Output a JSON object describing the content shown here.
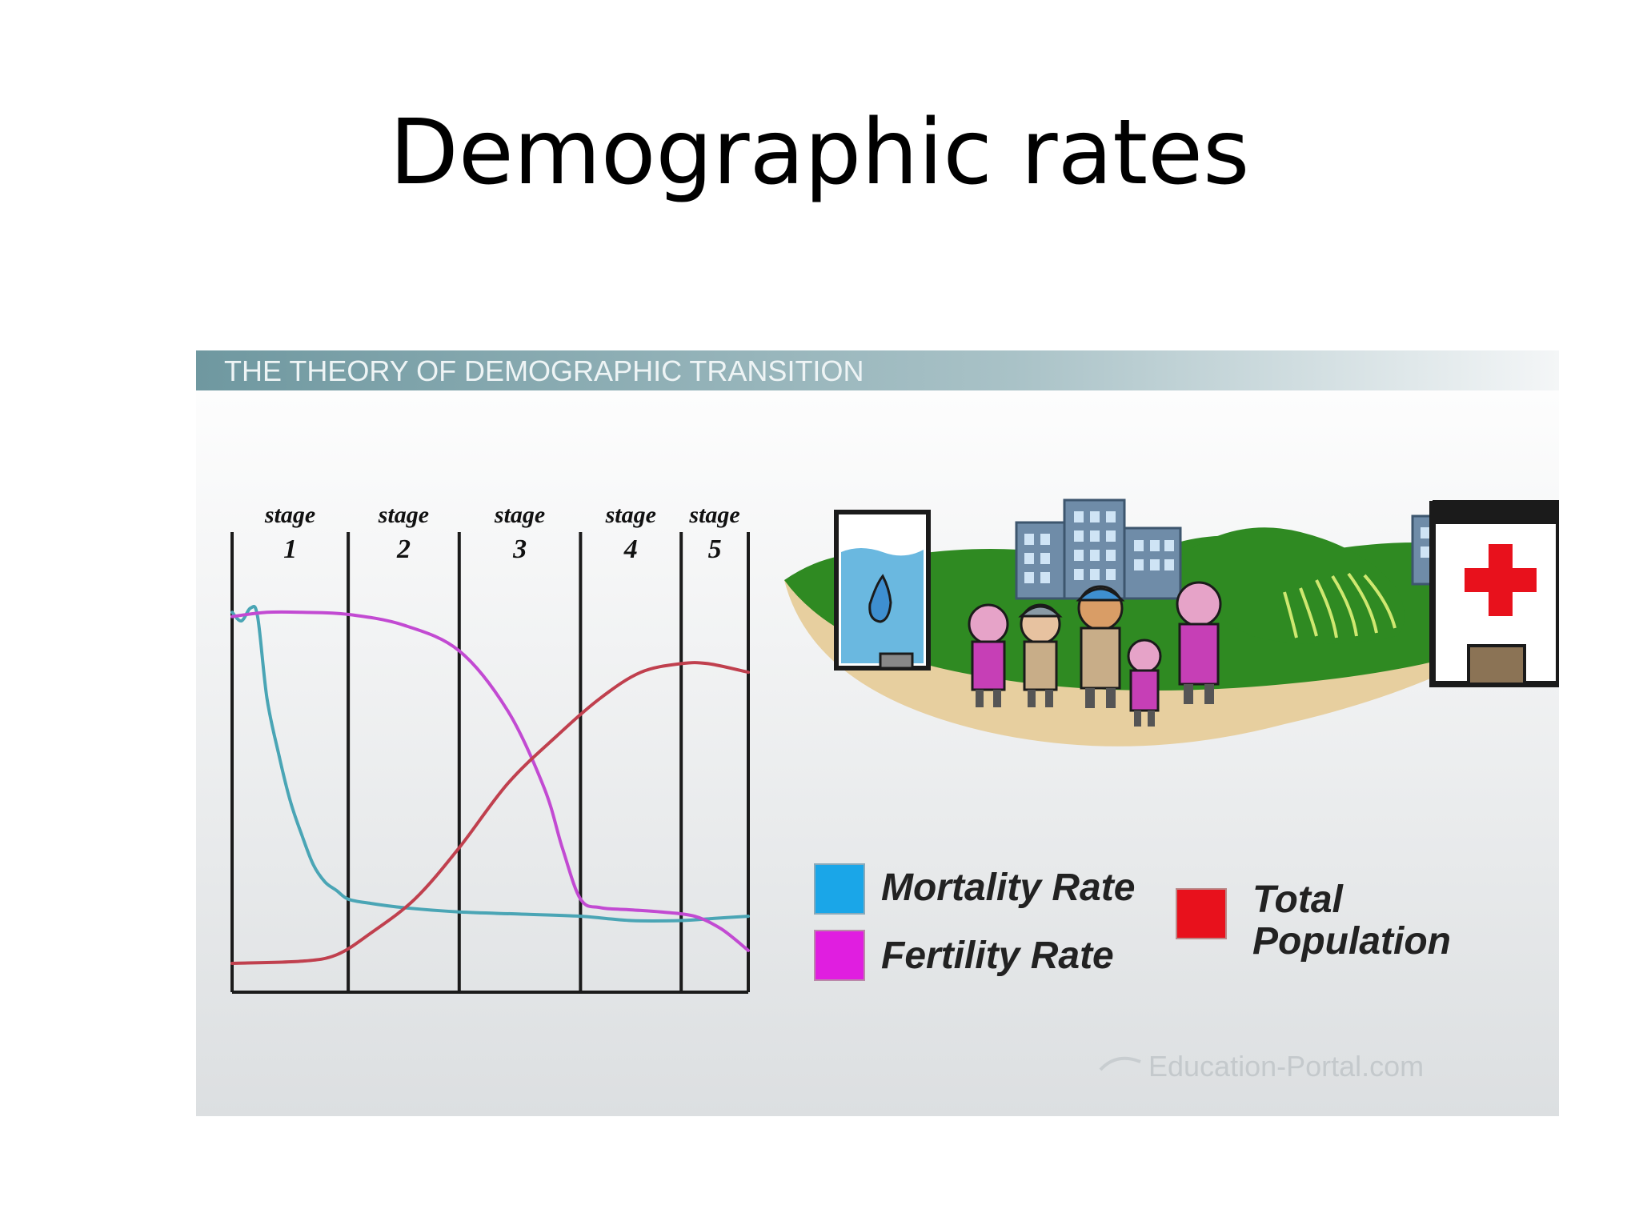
{
  "slide": {
    "title": "Demographic rates"
  },
  "figure": {
    "header": "THE THEORY OF DEMOGRAPHIC TRANSITION",
    "watermark": "Education-Portal.com"
  },
  "chart_data": {
    "type": "line",
    "stages": [
      {
        "label": "stage",
        "number": "1"
      },
      {
        "label": "stage",
        "number": "2"
      },
      {
        "label": "stage",
        "number": "3"
      },
      {
        "label": "stage",
        "number": "4"
      },
      {
        "label": "stage",
        "number": "5"
      }
    ],
    "stage_boundaries": [
      0,
      1,
      2,
      3,
      4,
      5
    ],
    "stage_edges_relative": [
      0,
      0.225,
      0.44,
      0.675,
      0.87,
      1.0
    ],
    "y_range": [
      0,
      100
    ],
    "series": [
      {
        "name": "Mortality Rate",
        "color": "#1aa6e8",
        "line_color": "#4aa5b5",
        "points": [
          [
            0.0,
            85
          ],
          [
            0.08,
            83
          ],
          [
            0.16,
            86
          ],
          [
            0.22,
            84
          ],
          [
            0.3,
            65
          ],
          [
            0.4,
            52
          ],
          [
            0.5,
            41
          ],
          [
            0.6,
            33
          ],
          [
            0.7,
            26
          ],
          [
            0.8,
            22
          ],
          [
            0.9,
            20
          ],
          [
            1.0,
            18
          ],
          [
            1.2,
            17
          ],
          [
            1.5,
            16
          ],
          [
            2.0,
            15
          ],
          [
            2.5,
            14.5
          ],
          [
            3.0,
            14
          ],
          [
            3.5,
            13
          ],
          [
            4.0,
            13
          ],
          [
            4.5,
            13.5
          ],
          [
            5.0,
            14
          ]
        ]
      },
      {
        "name": "Fertility Rate",
        "color": "#e01ee0",
        "line_color": "#c24ad2",
        "points": [
          [
            0.0,
            84
          ],
          [
            0.3,
            85
          ],
          [
            0.6,
            85
          ],
          [
            1.0,
            84.5
          ],
          [
            1.5,
            82
          ],
          [
            2.0,
            76
          ],
          [
            2.4,
            62
          ],
          [
            2.7,
            44
          ],
          [
            2.85,
            30
          ],
          [
            3.0,
            18
          ],
          [
            3.2,
            16
          ],
          [
            3.5,
            15.5
          ],
          [
            3.8,
            15
          ],
          [
            4.2,
            14
          ],
          [
            4.6,
            11
          ],
          [
            5.0,
            6
          ]
        ]
      },
      {
        "name": "Total Population",
        "color": "#e8111c",
        "line_color": "#c0404e",
        "points": [
          [
            0.0,
            3
          ],
          [
            0.6,
            3.5
          ],
          [
            0.9,
            5
          ],
          [
            1.2,
            10
          ],
          [
            1.6,
            18
          ],
          [
            2.0,
            30
          ],
          [
            2.4,
            45
          ],
          [
            2.8,
            56
          ],
          [
            3.2,
            65
          ],
          [
            3.6,
            71
          ],
          [
            4.0,
            73
          ],
          [
            4.4,
            73
          ],
          [
            5.0,
            71
          ]
        ]
      }
    ],
    "legend": [
      {
        "label": "Mortality Rate",
        "color": "#1aa6e8"
      },
      {
        "label": "Fertility Rate",
        "color": "#e01ee0"
      },
      {
        "label": "Total Population",
        "color": "#e8111c",
        "lines": [
          "Total",
          "Population"
        ]
      }
    ],
    "legend_position": "bottom-right",
    "grid": false
  },
  "illustration": {
    "items": [
      "water-tank",
      "city-buildings",
      "people-group",
      "farm-hill",
      "hospital-building"
    ]
  }
}
